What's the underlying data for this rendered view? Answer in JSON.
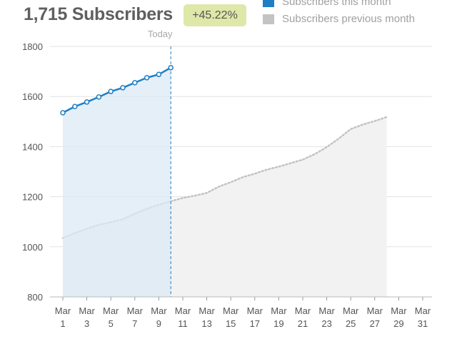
{
  "header": {
    "title": "1,715 Subscribers",
    "change": "+45.22%"
  },
  "colors": {
    "this_month": "#1e7fc4",
    "this_month_fill": "#dbe9f6",
    "previous_month": "#c3c3c3",
    "previous_month_fill": "#f2f2f2",
    "badge": "#dfe8a8",
    "grid": "#e2e2e2"
  },
  "chart_data": {
    "type": "area",
    "legend": [
      {
        "name": "Subscribers this month",
        "color": "#1e7fc4"
      },
      {
        "name": "Subscribers previous month",
        "color": "#c3c3c3"
      }
    ],
    "legend_position": "top-right",
    "annotation": "Today",
    "today_x": 10,
    "x_ticks": [
      {
        "x": 1,
        "line1": "Mar",
        "line2": "1"
      },
      {
        "x": 3,
        "line1": "Mar",
        "line2": "3"
      },
      {
        "x": 5,
        "line1": "Mar",
        "line2": "5"
      },
      {
        "x": 7,
        "line1": "Mar",
        "line2": "7"
      },
      {
        "x": 9,
        "line1": "Mar",
        "line2": "9"
      },
      {
        "x": 11,
        "line1": "Mar",
        "line2": "11"
      },
      {
        "x": 13,
        "line1": "Mar",
        "line2": "13"
      },
      {
        "x": 15,
        "line1": "Mar",
        "line2": "15"
      },
      {
        "x": 17,
        "line1": "Mar",
        "line2": "17"
      },
      {
        "x": 19,
        "line1": "Mar",
        "line2": "19"
      },
      {
        "x": 21,
        "line1": "Mar",
        "line2": "21"
      },
      {
        "x": 23,
        "line1": "Mar",
        "line2": "23"
      },
      {
        "x": 25,
        "line1": "Mar",
        "line2": "25"
      },
      {
        "x": 27,
        "line1": "Mar",
        "line2": "27"
      },
      {
        "x": 29,
        "line1": "Mar",
        "line2": "29"
      },
      {
        "x": 31,
        "line1": "Mar",
        "line2": "31"
      }
    ],
    "y_ticks": [
      800,
      1000,
      1200,
      1400,
      1600,
      1800
    ],
    "xlim": [
      1,
      31
    ],
    "ylim": [
      800,
      1800
    ],
    "grid": true,
    "series": [
      {
        "name": "Subscribers this month",
        "x": [
          1,
          2,
          3,
          4,
          5,
          6,
          7,
          8,
          9,
          10
        ],
        "values": [
          1535,
          1560,
          1578,
          1598,
          1620,
          1635,
          1655,
          1675,
          1688,
          1715
        ]
      },
      {
        "name": "Subscribers previous month",
        "x": [
          1,
          2,
          3,
          4,
          5,
          6,
          7,
          8,
          9,
          10,
          11,
          12,
          13,
          14,
          15,
          16,
          17,
          18,
          19,
          20,
          21,
          22,
          23,
          24,
          25,
          26,
          27,
          28
        ],
        "values": [
          1035,
          1055,
          1072,
          1088,
          1098,
          1110,
          1132,
          1152,
          1168,
          1182,
          1195,
          1204,
          1215,
          1240,
          1258,
          1278,
          1292,
          1308,
          1320,
          1334,
          1348,
          1370,
          1398,
          1432,
          1470,
          1488,
          1502,
          1518
        ]
      }
    ]
  }
}
